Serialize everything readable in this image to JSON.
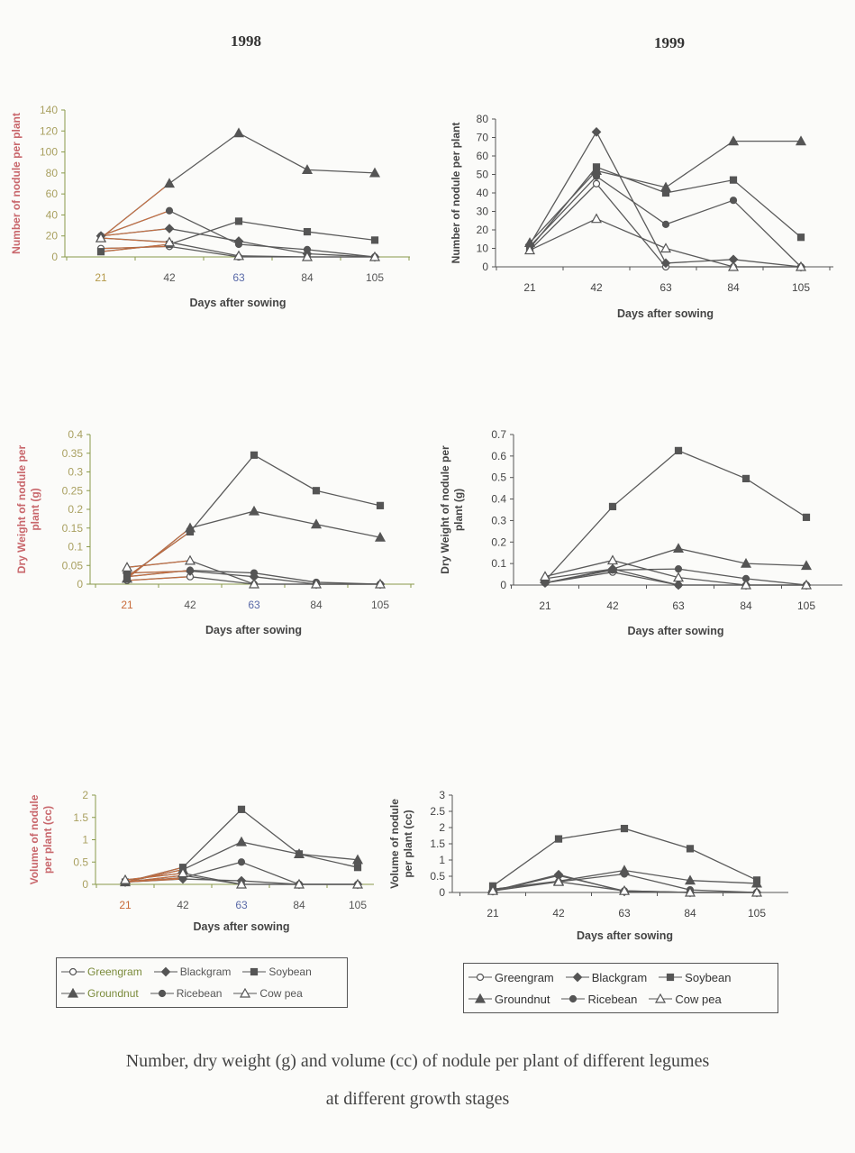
{
  "headings": {
    "left": "1998",
    "right": "1999"
  },
  "caption": {
    "line1": "Number, dry weight (g) and volume (cc) of nodule per plant of different legumes",
    "line2": "at different growth stages"
  },
  "legend": [
    {
      "name": "Greengram",
      "marker": "open-circle"
    },
    {
      "name": "Blackgram",
      "marker": "filled-diamond"
    },
    {
      "name": "Soybean",
      "marker": "filled-square"
    },
    {
      "name": "Groundnut",
      "marker": "filled-triangle"
    },
    {
      "name": "Ricebean",
      "marker": "filled-circle"
    },
    {
      "name": "Cow pea",
      "marker": "open-triangle"
    }
  ],
  "legend_1998_colors": [
    "#7a8a3a",
    "#555555",
    "#555555",
    "#7a8a3a",
    "#555555",
    "#555555"
  ],
  "colors": {
    "line": "#5a5a5a",
    "axis": "#777777",
    "ylabel_1998": "#c8666b",
    "ticks_1998": "#a9a060"
  },
  "chart_data": [
    {
      "type": "line",
      "year": "1998",
      "title": "",
      "xlabel": "Days after sowing",
      "ylabel": "Number of nodule per plant",
      "categories": [
        "21",
        "42",
        "63",
        "84",
        "105"
      ],
      "ylim": [
        0,
        140
      ],
      "y_ticks": [
        "0",
        "20",
        "40",
        "60",
        "80",
        "100",
        "120",
        "140"
      ],
      "grid": false,
      "series": [
        {
          "name": "Greengram",
          "values": [
            8,
            10,
            0,
            0,
            0
          ]
        },
        {
          "name": "Blackgram",
          "values": [
            20,
            27,
            15,
            3,
            0
          ]
        },
        {
          "name": "Soybean",
          "values": [
            5,
            12,
            34,
            24,
            16
          ]
        },
        {
          "name": "Groundnut",
          "values": [
            18,
            70,
            118,
            83,
            80
          ]
        },
        {
          "name": "Ricebean",
          "values": [
            20,
            44,
            12,
            7,
            0
          ]
        },
        {
          "name": "Cow pea",
          "values": [
            18,
            14,
            1,
            0,
            0
          ]
        }
      ]
    },
    {
      "type": "line",
      "year": "1999",
      "title": "",
      "xlabel": "Days after sowing",
      "ylabel": "Number of nodule per plant",
      "categories": [
        "21",
        "42",
        "63",
        "84",
        "105"
      ],
      "ylim": [
        0,
        80
      ],
      "y_ticks": [
        "0",
        "10",
        "20",
        "30",
        "40",
        "50",
        "60",
        "70",
        "80"
      ],
      "grid": false,
      "series": [
        {
          "name": "Greengram",
          "values": [
            9,
            45,
            0,
            0,
            0
          ]
        },
        {
          "name": "Blackgram",
          "values": [
            12,
            73,
            2,
            4,
            0
          ]
        },
        {
          "name": "Soybean",
          "values": [
            10,
            54,
            40,
            47,
            16
          ]
        },
        {
          "name": "Groundnut",
          "values": [
            13,
            52,
            43,
            68,
            68
          ]
        },
        {
          "name": "Ricebean",
          "values": [
            11,
            49,
            23,
            36,
            0
          ]
        },
        {
          "name": "Cow pea",
          "values": [
            9,
            26,
            10,
            0,
            0
          ]
        }
      ]
    },
    {
      "type": "line",
      "year": "1998",
      "title": "",
      "xlabel": "Days after sowing",
      "ylabel": "Dry Weight of nodule per plant (g)",
      "categories": [
        "21",
        "42",
        "63",
        "84",
        "105"
      ],
      "ylim": [
        0,
        0.4
      ],
      "y_ticks": [
        "0",
        "0.05",
        "0.1",
        "0.15",
        "0.2",
        "0.25",
        "0.3",
        "0.35",
        "0.4"
      ],
      "grid": false,
      "series": [
        {
          "name": "Greengram",
          "values": [
            0.01,
            0.02,
            0,
            0,
            0
          ]
        },
        {
          "name": "Blackgram",
          "values": [
            0.03,
            0.035,
            0.02,
            0,
            0
          ]
        },
        {
          "name": "Soybean",
          "values": [
            0.02,
            0.14,
            0.345,
            0.25,
            0.21
          ]
        },
        {
          "name": "Groundnut",
          "values": [
            0.015,
            0.15,
            0.195,
            0.16,
            0.125
          ]
        },
        {
          "name": "Ricebean",
          "values": [
            0.02,
            0.037,
            0.03,
            0.005,
            0
          ]
        },
        {
          "name": "Cow pea",
          "values": [
            0.045,
            0.063,
            0,
            0,
            0
          ]
        }
      ]
    },
    {
      "type": "line",
      "year": "1999",
      "title": "",
      "xlabel": "Days after sowing",
      "ylabel": "Dry Weight of nodule per plant (g)",
      "categories": [
        "21",
        "42",
        "63",
        "84",
        "105"
      ],
      "ylim": [
        0,
        0.7
      ],
      "y_ticks": [
        "0",
        "0.1",
        "0.2",
        "0.3",
        "0.4",
        "0.5",
        "0.6",
        "0.7"
      ],
      "grid": false,
      "series": [
        {
          "name": "Greengram",
          "values": [
            0.01,
            0.06,
            0,
            0,
            0
          ]
        },
        {
          "name": "Blackgram",
          "values": [
            0.01,
            0.075,
            0,
            0,
            0
          ]
        },
        {
          "name": "Soybean",
          "values": [
            0.02,
            0.365,
            0.625,
            0.495,
            0.315
          ]
        },
        {
          "name": "Groundnut",
          "values": [
            0.03,
            0.075,
            0.17,
            0.1,
            0.09
          ]
        },
        {
          "name": "Ricebean",
          "values": [
            0.01,
            0.07,
            0.075,
            0.03,
            0
          ]
        },
        {
          "name": "Cow pea",
          "values": [
            0.04,
            0.115,
            0.035,
            0,
            0
          ]
        }
      ]
    },
    {
      "type": "line",
      "year": "1998",
      "title": "",
      "xlabel": "Days after sowing",
      "ylabel": "Volume of nodule per plant (cc)",
      "categories": [
        "21",
        "42",
        "63",
        "84",
        "105"
      ],
      "ylim": [
        0,
        2
      ],
      "y_ticks": [
        "0",
        "0.5",
        "1",
        "1.5",
        "2"
      ],
      "grid": false,
      "series": [
        {
          "name": "Greengram",
          "values": [
            0.05,
            0.2,
            0,
            0,
            0
          ]
        },
        {
          "name": "Blackgram",
          "values": [
            0.05,
            0.12,
            0.08,
            0,
            0
          ]
        },
        {
          "name": "Soybean",
          "values": [
            0.05,
            0.38,
            1.68,
            0.68,
            0.38
          ]
        },
        {
          "name": "Groundnut",
          "values": [
            0.05,
            0.33,
            0.95,
            0.68,
            0.55
          ]
        },
        {
          "name": "Ricebean",
          "values": [
            0.05,
            0.15,
            0.5,
            0,
            0
          ]
        },
        {
          "name": "Cow pea",
          "values": [
            0.1,
            0.25,
            0,
            0,
            0
          ]
        }
      ]
    },
    {
      "type": "line",
      "year": "1999",
      "title": "",
      "xlabel": "Days after sowing",
      "ylabel": "Volume of nodule per plant (cc)",
      "categories": [
        "21",
        "42",
        "63",
        "84",
        "105"
      ],
      "ylim": [
        0,
        3
      ],
      "y_ticks": [
        "0",
        "0.5",
        "1",
        "1.5",
        "2",
        "2.5",
        "3"
      ],
      "grid": false,
      "series": [
        {
          "name": "Greengram",
          "values": [
            0.03,
            0.52,
            0.05,
            0,
            0
          ]
        },
        {
          "name": "Blackgram",
          "values": [
            0.05,
            0.55,
            0.03,
            0,
            0
          ]
        },
        {
          "name": "Soybean",
          "values": [
            0.2,
            1.65,
            1.97,
            1.35,
            0.38
          ]
        },
        {
          "name": "Groundnut",
          "values": [
            0.1,
            0.35,
            0.68,
            0.37,
            0.28
          ]
        },
        {
          "name": "Ricebean",
          "values": [
            0.1,
            0.33,
            0.57,
            0.08,
            0
          ]
        },
        {
          "name": "Cow pea",
          "values": [
            0.05,
            0.33,
            0.05,
            0,
            0
          ]
        }
      ]
    }
  ]
}
